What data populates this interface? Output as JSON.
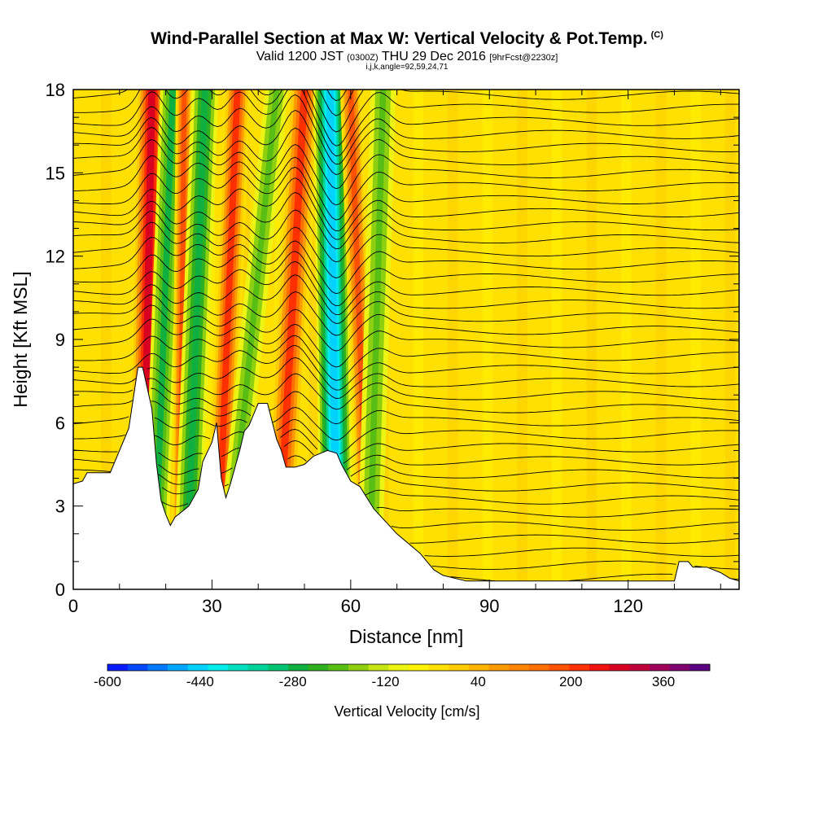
{
  "header": {
    "title": "Wind-Parallel Section at Max W: Vertical Velocity & Pot.Temp.",
    "copyright": "(C)",
    "valid_prefix": "Valid 1200 JST",
    "valid_utc": "(0300Z)",
    "valid_date": "THU 29 Dec 2016",
    "forecast": "[9hrFcst@2230z]",
    "indices": "i,j,k,angle=92,59,24,71"
  },
  "chart_data": {
    "type": "heatmap",
    "title": "Wind-Parallel Section at Max W: Vertical Velocity & Pot.Temp.",
    "xlabel": "Distance [nm]",
    "ylabel": "Height [Kft MSL]",
    "xlim": [
      0,
      144
    ],
    "ylim": [
      0,
      18
    ],
    "xticks": [
      0,
      30,
      60,
      90,
      120
    ],
    "yticks": [
      0,
      3,
      6,
      9,
      12,
      15,
      18
    ],
    "terrain": {
      "x": [
        0,
        2,
        3,
        8,
        12,
        14,
        15,
        17,
        18,
        19,
        20,
        21,
        22,
        25,
        27,
        28,
        30,
        31,
        32,
        33,
        34,
        35,
        36,
        37,
        38,
        40,
        42,
        44,
        45,
        46,
        48,
        50,
        52,
        55,
        57,
        58,
        60,
        62,
        65,
        70,
        75,
        78,
        80,
        85,
        90,
        95,
        100,
        105,
        110,
        115,
        120,
        125,
        130,
        131,
        133,
        134,
        135,
        137,
        140,
        142,
        144
      ],
      "height_kft": [
        3.8,
        3.9,
        4.2,
        4.2,
        5.8,
        8.0,
        8.0,
        6.5,
        4.5,
        3.2,
        2.7,
        2.3,
        2.6,
        3.0,
        3.6,
        4.6,
        5.3,
        6.0,
        4.0,
        3.3,
        3.8,
        4.4,
        5.0,
        5.7,
        5.9,
        6.7,
        6.7,
        5.4,
        5.0,
        4.4,
        4.4,
        4.5,
        4.8,
        5.0,
        4.9,
        4.5,
        3.9,
        3.7,
        2.9,
        2.0,
        1.3,
        0.7,
        0.5,
        0.3,
        0.3,
        0.3,
        0.3,
        0.3,
        0.3,
        0.3,
        0.3,
        0.3,
        0.3,
        1.0,
        1.0,
        0.8,
        0.8,
        0.8,
        0.6,
        0.4,
        0.3
      ]
    },
    "vertical_velocity_bands": [
      {
        "x_bottom": 15,
        "x_top": 17,
        "width": 3.2,
        "w_cm_s": 420
      },
      {
        "x_bottom": 17.5,
        "x_top": 21.5,
        "width": 2.4,
        "w_cm_s": -220
      },
      {
        "x_bottom": 23,
        "x_top": 24,
        "width": 1.5,
        "w_cm_s": 300
      },
      {
        "x_bottom": 24.5,
        "x_top": 28.5,
        "width": 2.6,
        "w_cm_s": -240
      },
      {
        "x_bottom": 31,
        "x_top": 35.5,
        "width": 2.6,
        "w_cm_s": 340
      },
      {
        "x_bottom": 33,
        "x_top": 44,
        "width": 2.2,
        "w_cm_s": -140
      },
      {
        "x_bottom": 44,
        "x_top": 50,
        "width": 3.2,
        "w_cm_s": 320
      },
      {
        "x_bottom": 57,
        "x_top": 55.5,
        "width": 3.3,
        "w_cm_s": -440
      },
      {
        "x_bottom": 64,
        "x_top": 60,
        "width": 2.0,
        "w_cm_s": 280
      },
      {
        "x_bottom": 64,
        "x_top": 67,
        "width": 2.4,
        "w_cm_s": -140
      }
    ],
    "theta_contours": {
      "count": 40,
      "color": "#000000"
    },
    "colorbar": {
      "label": "Vertical Velocity [cm/s]",
      "min": -600,
      "max": 440,
      "step": 40,
      "tick_labels": [
        "-600",
        "-440",
        "-280",
        "-120",
        "40",
        "200",
        "360"
      ],
      "colors": [
        "#0a1aff",
        "#0048ff",
        "#0078ff",
        "#00a6ff",
        "#00d2ff",
        "#00ecec",
        "#00e0c0",
        "#00d49a",
        "#00c470",
        "#10b040",
        "#30b020",
        "#58be14",
        "#8ed010",
        "#c6e614",
        "#ecf414",
        "#fff200",
        "#ffe000",
        "#ffcc00",
        "#ffb400",
        "#ff9a00",
        "#ff8400",
        "#ff6e00",
        "#ff5200",
        "#ff3000",
        "#f01010",
        "#d80020",
        "#c00038",
        "#a0005a",
        "#800070",
        "#5a0080"
      ]
    }
  }
}
